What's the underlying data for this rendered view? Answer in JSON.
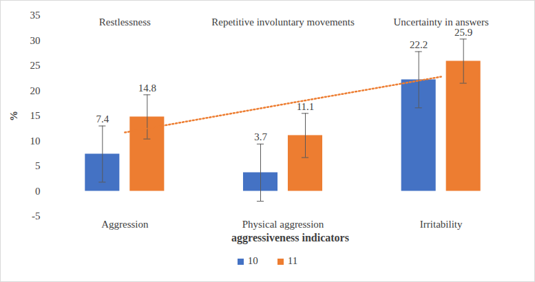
{
  "chart_data": {
    "type": "bar",
    "x_label": "aggressiveness indicators",
    "y_label": "%",
    "categories": [
      "Aggression",
      "Physical aggression",
      "Irritability"
    ],
    "series": [
      {
        "name": "10",
        "color": "#4472c4",
        "values": [
          7.4,
          3.7,
          22.2
        ],
        "errors": [
          5.6,
          5.7,
          5.6
        ]
      },
      {
        "name": "11",
        "color": "#ed7d31",
        "values": [
          14.8,
          11.1,
          25.9
        ],
        "errors": [
          4.4,
          4.4,
          4.4
        ],
        "trend": [
          11.7,
          17.3,
          22.8
        ]
      }
    ],
    "annotations": [
      {
        "category": "Aggression",
        "text": "Restlessness"
      },
      {
        "category": "Physical aggression",
        "text": "Repetitive involuntary movements"
      },
      {
        "category": "Irritability",
        "text": "Uncertainty in answers"
      }
    ],
    "ylim": [
      -5,
      35
    ],
    "yticks": [
      -5,
      0,
      5,
      10,
      15,
      20,
      25,
      30,
      35
    ],
    "data_labels": true,
    "legend": "bottom"
  }
}
